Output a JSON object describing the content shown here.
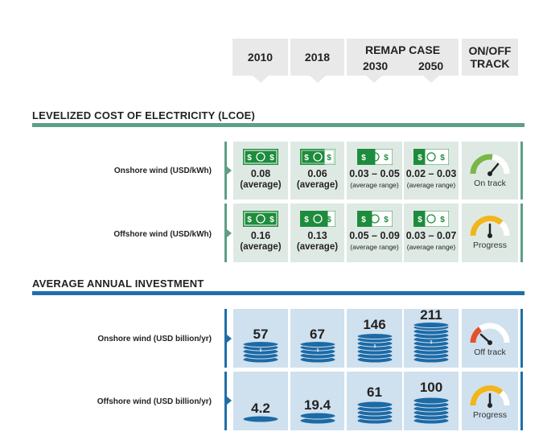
{
  "header": {
    "col_2010": "2010",
    "col_2018": "2018",
    "remap_title": "REMAP CASE",
    "col_2030": "2030",
    "col_2050": "2050",
    "track_line1": "ON/OFF",
    "track_line2": "TRACK"
  },
  "lcoe": {
    "title": "LEVELIZED COST OF ELECTRICITY (LCOE)",
    "onshore": {
      "label": "Onshore wind (USD/kWh)",
      "v2010": "0.08",
      "s2010": "(average)",
      "v2018": "0.06",
      "s2018": "(average)",
      "v2030": "0.03 – 0.05",
      "s2030": "(average range)",
      "v2050": "0.02 – 0.03",
      "s2050": "(average range)",
      "status": "On track",
      "status_color": "#7ab648"
    },
    "offshore": {
      "label": "Offshore wind (USD/kWh)",
      "v2010": "0.16",
      "s2010": "(average)",
      "v2018": "0.13",
      "s2018": "(average)",
      "v2030": "0.05 – 0.09",
      "s2030": "(average range)",
      "v2050": "0.03 – 0.07",
      "s2050": "(average range)",
      "status": "Progress",
      "status_color": "#f2b51c"
    }
  },
  "investment": {
    "title": "AVERAGE ANNUAL INVESTMENT",
    "onshore": {
      "label": "Onshore wind (USD billion/yr)",
      "v2010": "57",
      "v2018": "67",
      "v2030": "146",
      "v2050": "211",
      "status": "Off track",
      "status_color": "#e2522b"
    },
    "offshore": {
      "label": "Offshore wind (USD billion/yr)",
      "v2010": "4.2",
      "v2018": "19.4",
      "v2030": "61",
      "v2050": "100",
      "status": "Progress",
      "status_color": "#f2b51c"
    }
  },
  "colors": {
    "lcoe_accent": "#5f9e87",
    "investment_accent": "#1f6fa8",
    "bill_green": "#1d8c3d",
    "coin_blue": "#1c6aa6"
  },
  "icons": {
    "bill": "dollar-bill-icon",
    "coins": "coin-stack-icon",
    "gauge": "gauge-icon"
  }
}
